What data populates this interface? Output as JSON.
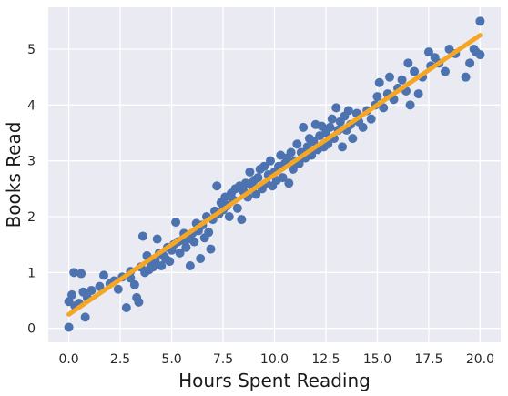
{
  "chart_data": {
    "type": "scatter",
    "xlabel": "Hours Spent Reading",
    "ylabel": "Books Read",
    "xlim": [
      -1.0,
      21.0
    ],
    "ylim": [
      -0.25,
      5.75
    ],
    "xticks": [
      0.0,
      2.5,
      5.0,
      7.5,
      10.0,
      12.5,
      15.0,
      17.5,
      20.0
    ],
    "xtick_labels": [
      "0.0",
      "2.5",
      "5.0",
      "7.5",
      "10.0",
      "12.5",
      "15.0",
      "17.5",
      "20.0"
    ],
    "yticks": [
      0,
      1,
      2,
      3,
      4,
      5
    ],
    "ytick_labels": [
      "0",
      "1",
      "2",
      "3",
      "4",
      "5"
    ],
    "grid": true,
    "background": "#eaeaf2",
    "colors": {
      "points": "#4c72b0",
      "fit_line": "#f5a623",
      "grid": "#ffffff"
    },
    "fit_line": {
      "slope": 0.25,
      "intercept": 0.25,
      "x_range": [
        0.0,
        20.0
      ]
    },
    "series": [
      {
        "type": "scatter",
        "points": [
          [
            0.0,
            0.02
          ],
          [
            0.0,
            0.48
          ],
          [
            0.15,
            0.6
          ],
          [
            0.25,
            1.0
          ],
          [
            0.3,
            0.4
          ],
          [
            0.5,
            0.45
          ],
          [
            0.6,
            0.98
          ],
          [
            0.7,
            0.65
          ],
          [
            0.8,
            0.2
          ],
          [
            0.9,
            0.55
          ],
          [
            1.1,
            0.68
          ],
          [
            1.5,
            0.75
          ],
          [
            1.7,
            0.95
          ],
          [
            2.0,
            0.8
          ],
          [
            2.2,
            0.85
          ],
          [
            2.4,
            0.7
          ],
          [
            2.6,
            0.92
          ],
          [
            2.8,
            0.37
          ],
          [
            3.0,
            1.02
          ],
          [
            3.0,
            0.9
          ],
          [
            3.2,
            0.78
          ],
          [
            3.3,
            0.55
          ],
          [
            3.4,
            0.47
          ],
          [
            3.5,
            1.1
          ],
          [
            3.6,
            1.65
          ],
          [
            3.7,
            1.0
          ],
          [
            3.8,
            1.3
          ],
          [
            3.9,
            1.05
          ],
          [
            4.0,
            1.15
          ],
          [
            4.1,
            1.1
          ],
          [
            4.2,
            1.22
          ],
          [
            4.3,
            1.6
          ],
          [
            4.4,
            1.35
          ],
          [
            4.5,
            1.12
          ],
          [
            4.6,
            1.3
          ],
          [
            4.7,
            1.25
          ],
          [
            4.8,
            1.45
          ],
          [
            4.9,
            1.2
          ],
          [
            5.0,
            1.4
          ],
          [
            5.1,
            1.5
          ],
          [
            5.2,
            1.9
          ],
          [
            5.3,
            1.55
          ],
          [
            5.4,
            1.35
          ],
          [
            5.5,
            1.58
          ],
          [
            5.6,
            1.7
          ],
          [
            5.7,
            1.45
          ],
          [
            5.8,
            1.6
          ],
          [
            5.9,
            1.12
          ],
          [
            6.0,
            1.7
          ],
          [
            6.1,
            1.55
          ],
          [
            6.2,
            1.88
          ],
          [
            6.3,
            1.75
          ],
          [
            6.4,
            1.25
          ],
          [
            6.5,
            1.85
          ],
          [
            6.6,
            1.62
          ],
          [
            6.7,
            2.0
          ],
          [
            6.8,
            1.72
          ],
          [
            6.9,
            1.42
          ],
          [
            7.0,
            1.95
          ],
          [
            7.1,
            2.1
          ],
          [
            7.2,
            2.55
          ],
          [
            7.3,
            2.05
          ],
          [
            7.4,
            2.25
          ],
          [
            7.5,
            2.12
          ],
          [
            7.6,
            2.35
          ],
          [
            7.7,
            2.2
          ],
          [
            7.8,
            2.0
          ],
          [
            7.9,
            2.42
          ],
          [
            8.0,
            2.3
          ],
          [
            8.1,
            2.5
          ],
          [
            8.2,
            2.15
          ],
          [
            8.3,
            2.55
          ],
          [
            8.4,
            1.95
          ],
          [
            8.5,
            2.45
          ],
          [
            8.6,
            2.6
          ],
          [
            8.7,
            2.35
          ],
          [
            8.8,
            2.8
          ],
          [
            8.9,
            2.55
          ],
          [
            9.0,
            2.65
          ],
          [
            9.1,
            2.4
          ],
          [
            9.2,
            2.7
          ],
          [
            9.3,
            2.85
          ],
          [
            9.4,
            2.5
          ],
          [
            9.5,
            2.9
          ],
          [
            9.6,
            2.6
          ],
          [
            9.7,
            2.75
          ],
          [
            9.8,
            3.0
          ],
          [
            9.9,
            2.55
          ],
          [
            10.0,
            2.8
          ],
          [
            10.1,
            2.65
          ],
          [
            10.2,
            2.9
          ],
          [
            10.3,
            3.1
          ],
          [
            10.4,
            2.7
          ],
          [
            10.5,
            2.95
          ],
          [
            10.6,
            3.05
          ],
          [
            10.7,
            2.6
          ],
          [
            10.8,
            3.15
          ],
          [
            10.9,
            2.85
          ],
          [
            11.0,
            3.0
          ],
          [
            11.1,
            3.3
          ],
          [
            11.2,
            2.95
          ],
          [
            11.3,
            3.15
          ],
          [
            11.4,
            3.6
          ],
          [
            11.5,
            3.05
          ],
          [
            11.6,
            3.25
          ],
          [
            11.7,
            3.4
          ],
          [
            11.8,
            3.1
          ],
          [
            11.9,
            3.35
          ],
          [
            12.0,
            3.65
          ],
          [
            12.1,
            3.2
          ],
          [
            12.2,
            3.45
          ],
          [
            12.3,
            3.62
          ],
          [
            12.4,
            3.25
          ],
          [
            12.5,
            3.5
          ],
          [
            12.6,
            3.3
          ],
          [
            12.7,
            3.6
          ],
          [
            12.8,
            3.75
          ],
          [
            12.9,
            3.4
          ],
          [
            13.0,
            3.95
          ],
          [
            13.1,
            3.55
          ],
          [
            13.2,
            3.7
          ],
          [
            13.3,
            3.25
          ],
          [
            13.4,
            3.8
          ],
          [
            13.5,
            3.55
          ],
          [
            13.6,
            3.9
          ],
          [
            13.7,
            3.65
          ],
          [
            13.8,
            3.4
          ],
          [
            14.0,
            3.85
          ],
          [
            14.1,
            3.7
          ],
          [
            14.3,
            3.6
          ],
          [
            14.5,
            3.9
          ],
          [
            14.7,
            3.75
          ],
          [
            14.9,
            4.0
          ],
          [
            15.0,
            4.15
          ],
          [
            15.1,
            4.4
          ],
          [
            15.3,
            3.95
          ],
          [
            15.5,
            4.2
          ],
          [
            15.6,
            4.5
          ],
          [
            15.8,
            4.1
          ],
          [
            16.0,
            4.3
          ],
          [
            16.2,
            4.45
          ],
          [
            16.4,
            4.25
          ],
          [
            16.5,
            4.75
          ],
          [
            16.6,
            4.0
          ],
          [
            16.8,
            4.6
          ],
          [
            17.0,
            4.2
          ],
          [
            17.2,
            4.5
          ],
          [
            17.5,
            4.95
          ],
          [
            17.6,
            4.7
          ],
          [
            17.8,
            4.85
          ],
          [
            18.0,
            4.75
          ],
          [
            18.3,
            4.6
          ],
          [
            18.5,
            5.0
          ],
          [
            18.8,
            4.92
          ],
          [
            19.3,
            4.5
          ],
          [
            19.5,
            4.75
          ],
          [
            19.7,
            5.0
          ],
          [
            19.8,
            4.95
          ],
          [
            20.0,
            4.9
          ],
          [
            20.0,
            5.5
          ]
        ]
      }
    ]
  }
}
